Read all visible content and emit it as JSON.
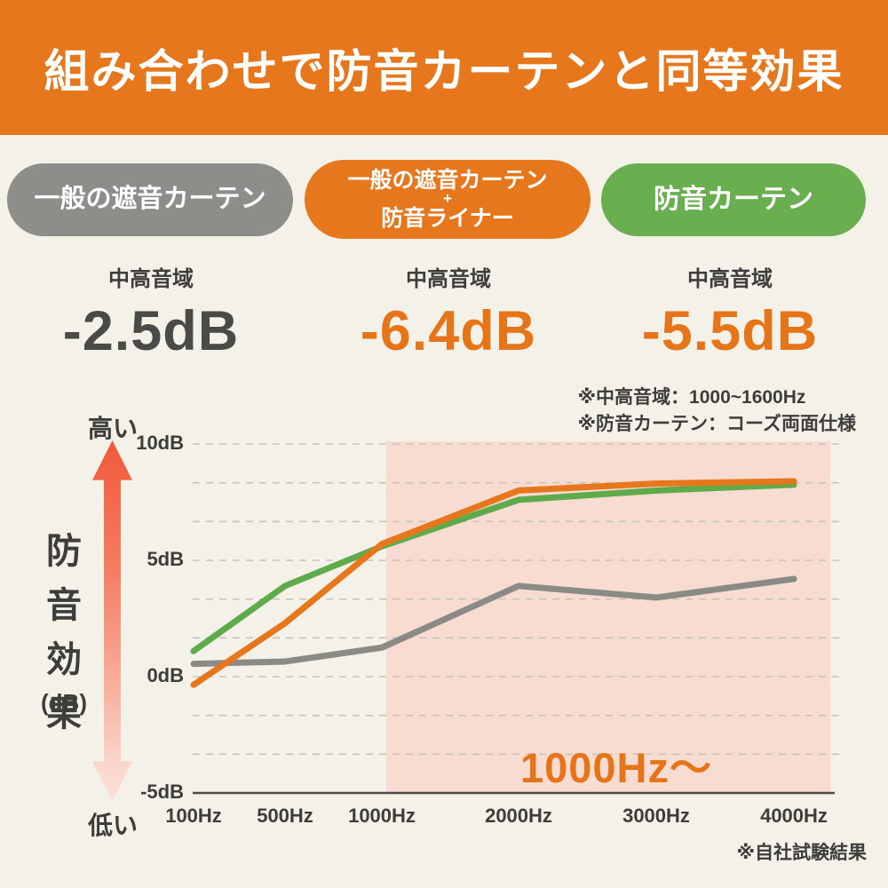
{
  "header": {
    "title": "組み合わせで防音カーテンと同等効果",
    "bg_color": "#E7771D",
    "text_color": "#FFFFFF"
  },
  "comparison": {
    "items": [
      {
        "pill_lines": [
          "一般の遮音カーテン"
        ],
        "pill_color": "#8D8D8A",
        "range_label": "中高音域",
        "value": "-2.5dB",
        "value_color": "#4A4A47"
      },
      {
        "pill_lines": [
          "一般の遮音カーテン",
          "+",
          "防音ライナー"
        ],
        "pill_color": "#E7771D",
        "range_label": "中高音域",
        "value": "-6.4dB",
        "value_color": "#E6751A"
      },
      {
        "pill_lines": [
          "防音カーテン"
        ],
        "pill_color": "#69AE4F",
        "range_label": "中高音域",
        "value": "-5.5dB",
        "value_color": "#E6751A"
      }
    ]
  },
  "notes": [
    "※中高音域：1000~1600Hz",
    "※防音カーテン：コーズ両面仕様"
  ],
  "axis_decoration": {
    "high": "高い",
    "low": "低い",
    "axis_title": "防音効果",
    "axis_unit": "(dB)"
  },
  "chart_data": {
    "type": "line",
    "categories": [
      "100Hz",
      "500Hz",
      "1000Hz",
      "2000Hz",
      "3000Hz",
      "4000Hz"
    ],
    "series": [
      {
        "name": "一般の遮音カーテン",
        "color": "#8B8B85",
        "values": [
          0.55,
          0.65,
          1.25,
          3.9,
          3.4,
          4.2
        ]
      },
      {
        "name": "防音カーテン",
        "color": "#5FAA4B",
        "values": [
          1.1,
          3.9,
          5.6,
          7.6,
          8.0,
          8.25
        ]
      },
      {
        "name": "一般の遮音カーテン+防音ライナー",
        "color": "#E6771C",
        "values": [
          -0.35,
          2.3,
          5.7,
          8.0,
          8.3,
          8.4
        ]
      }
    ],
    "ylabel": "防音効果 (dB)",
    "ylim": [
      -5,
      10
    ],
    "yticks": [
      {
        "label": "10dB",
        "value": 10
      },
      {
        "label": "5dB",
        "value": 5
      },
      {
        "label": "0dB",
        "value": 0
      },
      {
        "label": "-5dB",
        "value": -5
      }
    ],
    "grid": "dashed horizontal, minor lines at 5/3 dB steps",
    "grid_color": "#C8C3BA",
    "axis_color": "#4A4A48",
    "legend_position": "none (pills above chart act as legend)",
    "highlight_band": {
      "start_category": "1000Hz",
      "label": "1000Hz〜",
      "label_color": "#E6751A",
      "color": "#F8DCD2"
    }
  },
  "footer": {
    "source_note": "※自社試験結果"
  },
  "colors": {
    "background": "#F4F1E9",
    "accent_orange": "#E7771D",
    "green": "#69AE4F",
    "gray": "#8D8D8A",
    "dark_text": "#3D3D3B",
    "highlight_pink": "#F8DCD2"
  }
}
